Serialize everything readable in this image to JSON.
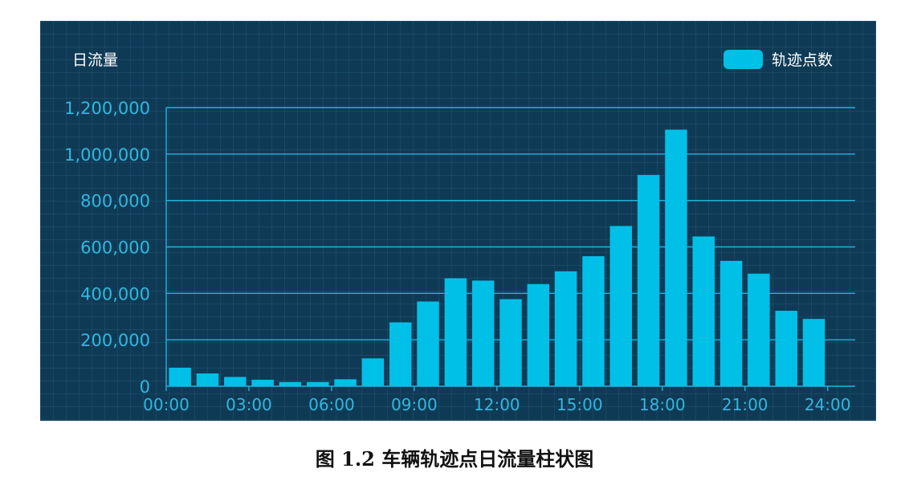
{
  "caption": "图 1.2 车辆轨迹点日流量柱状图",
  "chart_data": {
    "type": "bar",
    "title": "日流量",
    "legend": {
      "label": "轨迹点数",
      "position": "top-right"
    },
    "colors": {
      "background": "#0f3a55",
      "bar": "#00c0e8",
      "axis_text": "#2fb8df",
      "grid": "#1fb4dc"
    },
    "ylim": [
      0,
      1200000
    ],
    "yticks": [
      0,
      200000,
      400000,
      600000,
      800000,
      1000000,
      1200000
    ],
    "ytick_labels": [
      "0",
      "200,000",
      "400,000",
      "600,000",
      "800,000",
      "1,000,000",
      "1,200,000"
    ],
    "xticks": [
      "00:00",
      "03:00",
      "06:00",
      "09:00",
      "12:00",
      "15:00",
      "18:00",
      "21:00",
      "24:00"
    ],
    "xlim": [
      0,
      25
    ],
    "grid": true,
    "series": [
      {
        "name": "轨迹点数",
        "values": [
          80000,
          55000,
          40000,
          28000,
          18000,
          18000,
          30000,
          120000,
          275000,
          365000,
          465000,
          455000,
          375000,
          440000,
          495000,
          560000,
          690000,
          910000,
          1105000,
          645000,
          540000,
          485000,
          325000,
          290000
        ]
      }
    ]
  }
}
